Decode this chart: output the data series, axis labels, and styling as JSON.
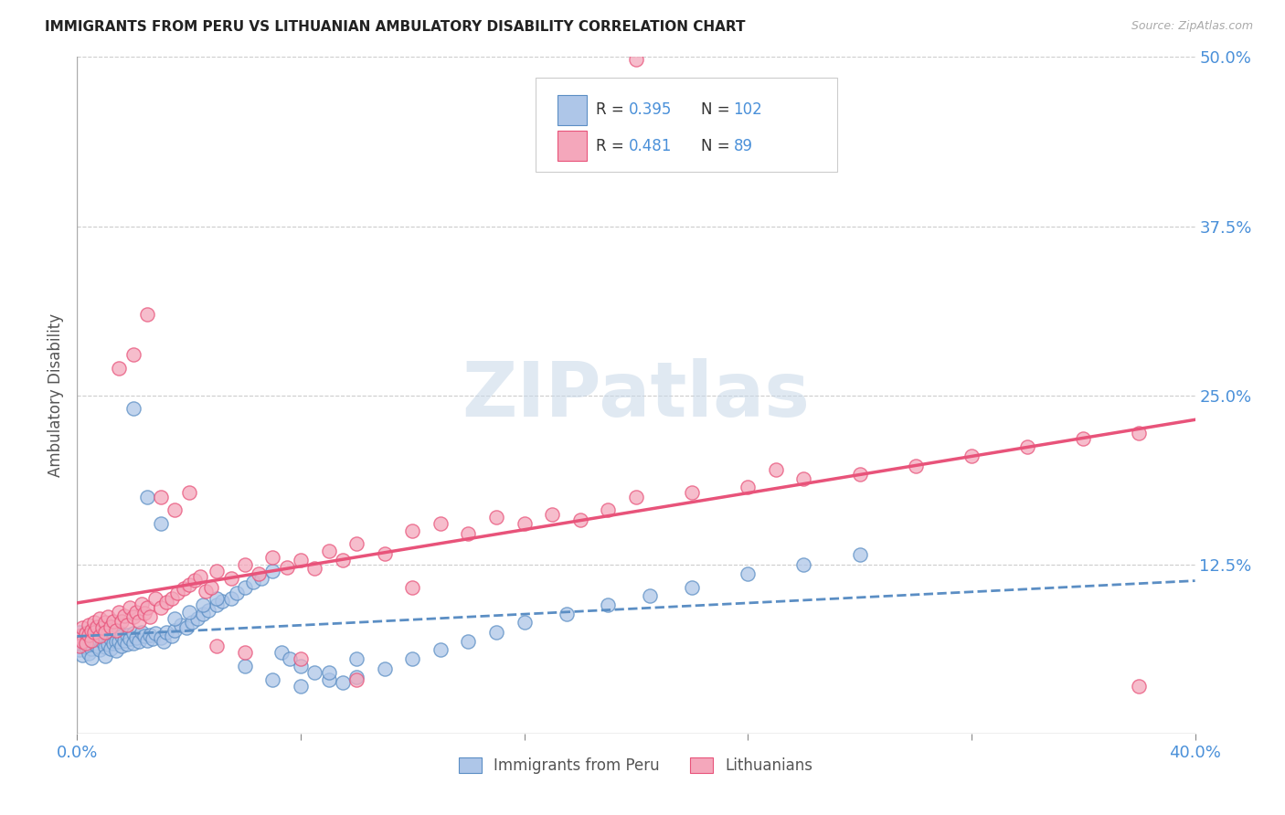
{
  "title": "IMMIGRANTS FROM PERU VS LITHUANIAN AMBULATORY DISABILITY CORRELATION CHART",
  "source": "Source: ZipAtlas.com",
  "ylabel": "Ambulatory Disability",
  "xlim": [
    0.0,
    0.4
  ],
  "ylim": [
    0.0,
    0.5
  ],
  "xticks": [
    0.0,
    0.08,
    0.16,
    0.24,
    0.32,
    0.4
  ],
  "xticklabels": [
    "0.0%",
    "",
    "",
    "",
    "",
    "40.0%"
  ],
  "yticks": [
    0.0,
    0.125,
    0.25,
    0.375,
    0.5
  ],
  "yticklabels": [
    "",
    "12.5%",
    "25.0%",
    "37.5%",
    "50.0%"
  ],
  "blue_color": "#aec6e8",
  "pink_color": "#f4a7bb",
  "blue_line_color": "#5b8ec4",
  "pink_line_color": "#e8537a",
  "R_blue": 0.395,
  "N_blue": 102,
  "R_pink": 0.481,
  "N_pink": 89,
  "legend_blue_label": "Immigrants from Peru",
  "legend_pink_label": "Lithuanians",
  "blue_scatter_x": [
    0.001,
    0.001,
    0.001,
    0.002,
    0.002,
    0.002,
    0.003,
    0.003,
    0.004,
    0.004,
    0.004,
    0.005,
    0.005,
    0.005,
    0.006,
    0.006,
    0.007,
    0.007,
    0.008,
    0.008,
    0.009,
    0.009,
    0.01,
    0.01,
    0.01,
    0.011,
    0.011,
    0.012,
    0.012,
    0.013,
    0.013,
    0.014,
    0.014,
    0.015,
    0.015,
    0.016,
    0.016,
    0.017,
    0.018,
    0.018,
    0.019,
    0.02,
    0.02,
    0.021,
    0.022,
    0.023,
    0.024,
    0.025,
    0.026,
    0.027,
    0.028,
    0.03,
    0.031,
    0.032,
    0.034,
    0.035,
    0.037,
    0.039,
    0.041,
    0.043,
    0.045,
    0.047,
    0.05,
    0.052,
    0.055,
    0.057,
    0.06,
    0.063,
    0.066,
    0.07,
    0.073,
    0.076,
    0.08,
    0.085,
    0.09,
    0.095,
    0.1,
    0.11,
    0.12,
    0.13,
    0.14,
    0.15,
    0.16,
    0.175,
    0.19,
    0.205,
    0.22,
    0.24,
    0.26,
    0.28,
    0.02,
    0.025,
    0.03,
    0.035,
    0.04,
    0.045,
    0.05,
    0.06,
    0.07,
    0.08,
    0.09,
    0.1
  ],
  "blue_scatter_y": [
    0.068,
    0.075,
    0.062,
    0.072,
    0.065,
    0.058,
    0.071,
    0.064,
    0.073,
    0.066,
    0.059,
    0.07,
    0.063,
    0.056,
    0.074,
    0.067,
    0.072,
    0.065,
    0.069,
    0.062,
    0.068,
    0.075,
    0.071,
    0.064,
    0.057,
    0.073,
    0.066,
    0.07,
    0.063,
    0.074,
    0.067,
    0.068,
    0.061,
    0.075,
    0.068,
    0.072,
    0.065,
    0.069,
    0.073,
    0.066,
    0.07,
    0.074,
    0.067,
    0.071,
    0.068,
    0.075,
    0.072,
    0.069,
    0.073,
    0.07,
    0.074,
    0.071,
    0.068,
    0.075,
    0.072,
    0.076,
    0.08,
    0.078,
    0.082,
    0.085,
    0.088,
    0.091,
    0.095,
    0.098,
    0.1,
    0.104,
    0.108,
    0.112,
    0.115,
    0.12,
    0.06,
    0.055,
    0.05,
    0.045,
    0.04,
    0.038,
    0.042,
    0.048,
    0.055,
    0.062,
    0.068,
    0.075,
    0.082,
    0.088,
    0.095,
    0.102,
    0.108,
    0.118,
    0.125,
    0.132,
    0.24,
    0.175,
    0.155,
    0.085,
    0.09,
    0.095,
    0.1,
    0.05,
    0.04,
    0.035,
    0.045,
    0.055
  ],
  "pink_scatter_x": [
    0.001,
    0.001,
    0.002,
    0.002,
    0.003,
    0.003,
    0.004,
    0.004,
    0.005,
    0.005,
    0.006,
    0.006,
    0.007,
    0.008,
    0.008,
    0.009,
    0.01,
    0.01,
    0.011,
    0.012,
    0.013,
    0.014,
    0.015,
    0.016,
    0.017,
    0.018,
    0.019,
    0.02,
    0.021,
    0.022,
    0.023,
    0.024,
    0.025,
    0.026,
    0.028,
    0.03,
    0.032,
    0.034,
    0.036,
    0.038,
    0.04,
    0.042,
    0.044,
    0.046,
    0.048,
    0.05,
    0.055,
    0.06,
    0.065,
    0.07,
    0.075,
    0.08,
    0.085,
    0.09,
    0.095,
    0.1,
    0.11,
    0.12,
    0.13,
    0.14,
    0.15,
    0.16,
    0.17,
    0.18,
    0.19,
    0.2,
    0.22,
    0.24,
    0.26,
    0.28,
    0.3,
    0.32,
    0.34,
    0.36,
    0.38,
    0.015,
    0.02,
    0.025,
    0.03,
    0.035,
    0.04,
    0.05,
    0.06,
    0.08,
    0.1,
    0.12,
    0.2,
    0.25,
    0.38
  ],
  "pink_scatter_y": [
    0.072,
    0.065,
    0.078,
    0.068,
    0.074,
    0.067,
    0.08,
    0.073,
    0.076,
    0.069,
    0.082,
    0.075,
    0.079,
    0.072,
    0.085,
    0.078,
    0.082,
    0.075,
    0.086,
    0.079,
    0.083,
    0.076,
    0.09,
    0.083,
    0.087,
    0.08,
    0.093,
    0.086,
    0.09,
    0.083,
    0.096,
    0.089,
    0.093,
    0.086,
    0.1,
    0.093,
    0.097,
    0.1,
    0.104,
    0.107,
    0.11,
    0.113,
    0.116,
    0.105,
    0.108,
    0.12,
    0.115,
    0.125,
    0.118,
    0.13,
    0.123,
    0.128,
    0.122,
    0.135,
    0.128,
    0.14,
    0.133,
    0.15,
    0.155,
    0.148,
    0.16,
    0.155,
    0.162,
    0.158,
    0.165,
    0.175,
    0.178,
    0.182,
    0.188,
    0.192,
    0.198,
    0.205,
    0.212,
    0.218,
    0.222,
    0.27,
    0.28,
    0.31,
    0.175,
    0.165,
    0.178,
    0.065,
    0.06,
    0.055,
    0.04,
    0.108,
    0.498,
    0.195,
    0.035
  ]
}
